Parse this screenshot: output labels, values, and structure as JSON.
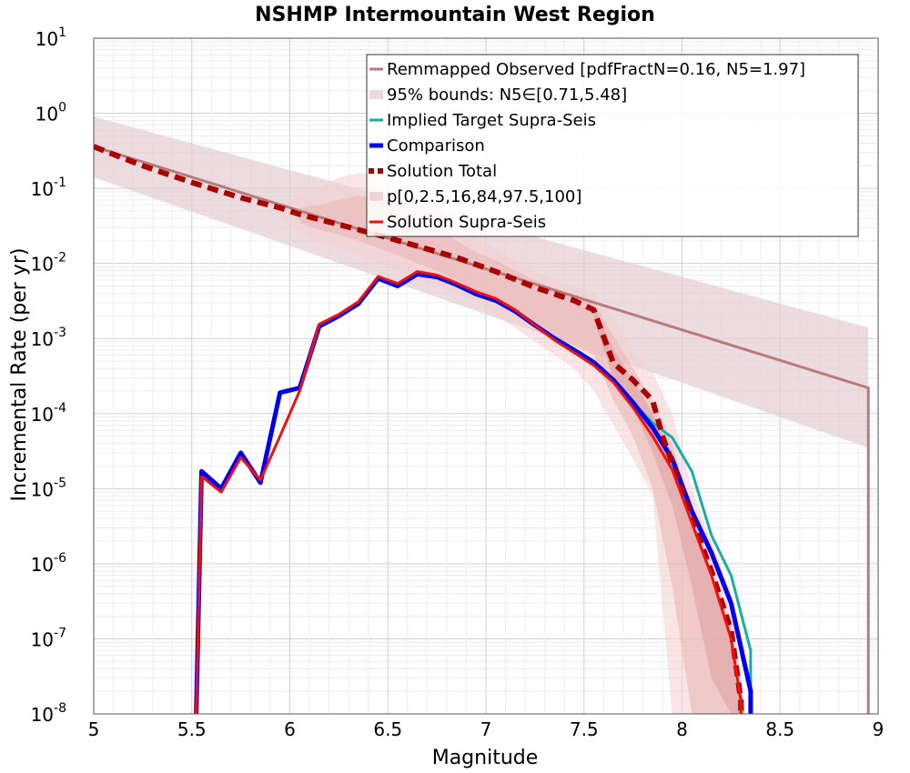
{
  "chart_data": {
    "type": "line",
    "title": "NSHMP Intermountain West Region",
    "xlabel": "Magnitude",
    "ylabel": "Incremental Rate (per yr)",
    "xlim": [
      5,
      9
    ],
    "ylim": [
      1e-08,
      10
    ],
    "yscale": "log",
    "grid": true,
    "legend_position": "top-right",
    "x_ticks": [
      5,
      5.5,
      6,
      6.5,
      7,
      7.5,
      8,
      8.5,
      9
    ],
    "x_tick_labels": [
      "5",
      "5.5",
      "6",
      "6.5",
      "7",
      "7.5",
      "8",
      "8.5",
      "9"
    ],
    "y_ticks": [
      {
        "base": "10",
        "exp": "1"
      },
      {
        "base": "10",
        "exp": "0"
      },
      {
        "base": "10",
        "exp": "-1"
      },
      {
        "base": "10",
        "exp": "-2"
      },
      {
        "base": "10",
        "exp": "-3"
      },
      {
        "base": "10",
        "exp": "-4"
      },
      {
        "base": "10",
        "exp": "-5"
      },
      {
        "base": "10",
        "exp": "-6"
      },
      {
        "base": "10",
        "exp": "-7"
      },
      {
        "base": "10",
        "exp": "-8"
      }
    ],
    "legend": [
      {
        "label": "Remmapped Observed [pdfFractN=0.16, N5=1.97]",
        "color": "#b87b7b",
        "style": "solid",
        "width": 3
      },
      {
        "label": "95% bounds: N5∈[0.71,5.48]",
        "color": "#ecd9dc",
        "style": "band",
        "width": 10
      },
      {
        "label": "Implied Target Supra-Seis",
        "color": "#1aada5",
        "style": "solid",
        "width": 3
      },
      {
        "label": "Comparison",
        "color": "#0000ee",
        "style": "solid",
        "width": 5
      },
      {
        "label": "Solution Total",
        "color": "#aa0000",
        "style": "dashed",
        "width": 6
      },
      {
        "label": "p[0,2.5,16,84,97.5,100]",
        "color": "#f2d3d3",
        "style": "band",
        "width": 10
      },
      {
        "label": "Solution Supra-Seis",
        "color": "#ee1111",
        "style": "solid",
        "width": 3
      }
    ],
    "bands": [
      {
        "name": "95% bounds",
        "color": "#e4cdd1",
        "opacity": 0.7,
        "x": [
          5.0,
          8.95,
          8.95
        ],
        "upper": [
          0.9,
          0.0014,
          0.0014
        ],
        "lower": [
          0.14,
          3.5e-05,
          3.5e-05
        ]
      },
      {
        "name": "p 0-100",
        "color": "#f4d0d0",
        "opacity": 0.55,
        "x": [
          5.95,
          6.05,
          6.15,
          6.25,
          6.35,
          6.45,
          6.55,
          6.65,
          6.75,
          6.85,
          6.95,
          7.05,
          7.15,
          7.25,
          7.35,
          7.45,
          7.55,
          7.65,
          7.75,
          7.85,
          7.95,
          8.05,
          8.15,
          8.25,
          8.32
        ],
        "upper": [
          0.06,
          0.08,
          0.1,
          0.14,
          0.16,
          0.15,
          0.1,
          0.07,
          0.06,
          0.035,
          0.022,
          0.016,
          0.011,
          0.008,
          0.006,
          0.005,
          0.004,
          0.002,
          0.0007,
          0.00035,
          0.0001,
          1e-05,
          2e-06,
          4e-07,
          1e-08
        ],
        "lower": [
          0.04,
          0.026,
          0.02,
          0.016,
          0.013,
          0.01,
          0.008,
          0.006,
          0.005,
          0.004,
          0.003,
          0.0021,
          0.0014,
          0.0009,
          0.0006,
          0.0004,
          0.0002,
          7e-05,
          2.5e-05,
          8e-06,
          1e-08,
          1e-08,
          1e-08,
          1e-08,
          1e-08
        ]
      },
      {
        "name": "p 2.5-97.5",
        "color": "#eab2b2",
        "opacity": 0.55,
        "x": [
          6.05,
          6.15,
          6.25,
          6.35,
          6.45,
          6.55,
          6.65,
          6.75,
          6.85,
          6.95,
          7.05,
          7.15,
          7.25,
          7.35,
          7.45,
          7.55,
          7.65,
          7.75,
          7.85,
          7.95,
          8.05,
          8.15,
          8.25,
          8.32
        ],
        "upper": [
          0.055,
          0.06,
          0.07,
          0.08,
          0.07,
          0.05,
          0.035,
          0.03,
          0.02,
          0.014,
          0.011,
          0.008,
          0.006,
          0.0045,
          0.0037,
          0.003,
          0.0011,
          0.0004,
          0.00015,
          4e-05,
          5e-06,
          8e-07,
          1.5e-07,
          1e-08
        ],
        "lower": [
          0.035,
          0.028,
          0.024,
          0.02,
          0.016,
          0.013,
          0.01,
          0.008,
          0.006,
          0.0045,
          0.0032,
          0.0022,
          0.0014,
          0.001,
          0.0008,
          0.0006,
          0.00015,
          5e-05,
          1e-05,
          5e-07,
          1e-08,
          1e-08,
          1e-08,
          1e-08
        ]
      },
      {
        "name": "p 16-84",
        "color": "#dc9a9a",
        "opacity": 0.5,
        "x": [
          7.55,
          7.65,
          7.75,
          7.85,
          7.95,
          8.05,
          8.15,
          8.25,
          8.32
        ],
        "upper": [
          0.0028,
          0.0007,
          0.00028,
          0.0001,
          3e-05,
          4e-06,
          6e-07,
          1e-07,
          1e-08
        ],
        "lower": [
          0.0018,
          0.0003,
          0.00012,
          3e-05,
          6e-06,
          5e-07,
          3e-08,
          1e-08,
          1e-08
        ]
      }
    ],
    "series": [
      {
        "name": "Remmapped Observed [pdfFractN=0.16, N5=1.97]",
        "color": "#b87b7b",
        "width": 3,
        "dash": "",
        "x": [
          5.0,
          8.95,
          8.95
        ],
        "y": [
          0.36,
          0.00022,
          1e-09
        ]
      },
      {
        "name": "Implied Target Supra-Seis",
        "color": "#1aada5",
        "width": 3,
        "dash": "",
        "x": [
          5.55,
          5.65,
          5.75,
          5.85,
          5.95,
          6.05,
          6.15,
          6.25,
          6.35,
          6.45,
          6.55,
          6.65,
          6.75,
          6.85,
          6.95,
          7.05,
          7.15,
          7.25,
          7.35,
          7.45,
          7.55,
          7.65,
          7.75,
          7.85,
          7.95,
          8.05,
          8.15,
          8.25,
          8.35,
          8.35
        ],
        "y": [
          1.7e-05,
          1e-05,
          3e-05,
          1.2e-05,
          0.00019,
          0.00022,
          0.00145,
          0.002,
          0.0029,
          0.0063,
          0.005,
          0.0072,
          0.0066,
          0.0052,
          0.0039,
          0.0032,
          0.0023,
          0.0015,
          0.00098,
          0.00068,
          0.00047,
          0.00028,
          0.00014,
          7.5e-05,
          4.8e-05,
          1.7e-05,
          2.4e-06,
          7e-07,
          7e-08,
          1e-09
        ]
      },
      {
        "name": "Comparison",
        "color": "#0000ee",
        "width": 5,
        "dash": "",
        "x": [
          5.52,
          5.55,
          5.65,
          5.75,
          5.85,
          5.95,
          6.05,
          6.15,
          6.25,
          6.35,
          6.45,
          6.55,
          6.65,
          6.75,
          6.85,
          6.95,
          7.05,
          7.15,
          7.25,
          7.35,
          7.45,
          7.55,
          7.65,
          7.75,
          7.85,
          7.95,
          8.05,
          8.15,
          8.25,
          8.35,
          8.35
        ],
        "y": [
          1e-09,
          1.7e-05,
          1e-05,
          3e-05,
          1.2e-05,
          0.00019,
          0.00022,
          0.00145,
          0.002,
          0.0029,
          0.0063,
          0.005,
          0.0072,
          0.0066,
          0.0052,
          0.0039,
          0.0032,
          0.0023,
          0.0015,
          0.001,
          0.0007,
          0.00048,
          0.00028,
          0.00014,
          6.5e-05,
          2.5e-05,
          5e-06,
          1.4e-06,
          3e-07,
          2e-08,
          1e-09
        ]
      },
      {
        "name": "Solution Total",
        "color": "#aa0000",
        "width": 6,
        "dash": "12,7",
        "x": [
          5.0,
          5.25,
          5.5,
          5.75,
          5.95,
          6.05,
          6.25,
          6.45,
          6.65,
          6.85,
          7.05,
          7.25,
          7.45,
          7.55,
          7.65,
          7.75,
          7.85,
          7.9,
          7.95,
          8.05,
          8.15,
          8.25,
          8.3,
          8.3
        ],
        "y": [
          0.36,
          0.2,
          0.12,
          0.075,
          0.055,
          0.045,
          0.033,
          0.024,
          0.017,
          0.012,
          0.0078,
          0.0048,
          0.0032,
          0.0024,
          0.00047,
          0.00028,
          0.00015,
          5e-05,
          2.2e-05,
          4e-06,
          8e-07,
          1.3e-07,
          1.5e-08,
          1e-09
        ]
      },
      {
        "name": "Solution Supra-Seis",
        "color": "#ee1111",
        "width": 3,
        "dash": "",
        "x": [
          5.52,
          5.55,
          5.65,
          5.75,
          5.85,
          5.95,
          6.05,
          6.15,
          6.25,
          6.35,
          6.45,
          6.55,
          6.65,
          6.75,
          6.85,
          6.95,
          7.05,
          7.15,
          7.25,
          7.35,
          7.45,
          7.55,
          7.65,
          7.75,
          7.85,
          7.95,
          8.05,
          8.15,
          8.25,
          8.3,
          8.3
        ],
        "y": [
          1e-09,
          1.45e-05,
          9e-06,
          2.6e-05,
          1.3e-05,
          5e-05,
          0.0002,
          0.00155,
          0.0021,
          0.0031,
          0.0067,
          0.0054,
          0.0078,
          0.007,
          0.0055,
          0.0042,
          0.0034,
          0.0024,
          0.0015,
          0.00095,
          0.00065,
          0.00044,
          0.00026,
          0.00012,
          5e-05,
          1.8e-05,
          3.5e-06,
          7e-07,
          1e-07,
          1.5e-08,
          1e-09
        ]
      }
    ]
  }
}
